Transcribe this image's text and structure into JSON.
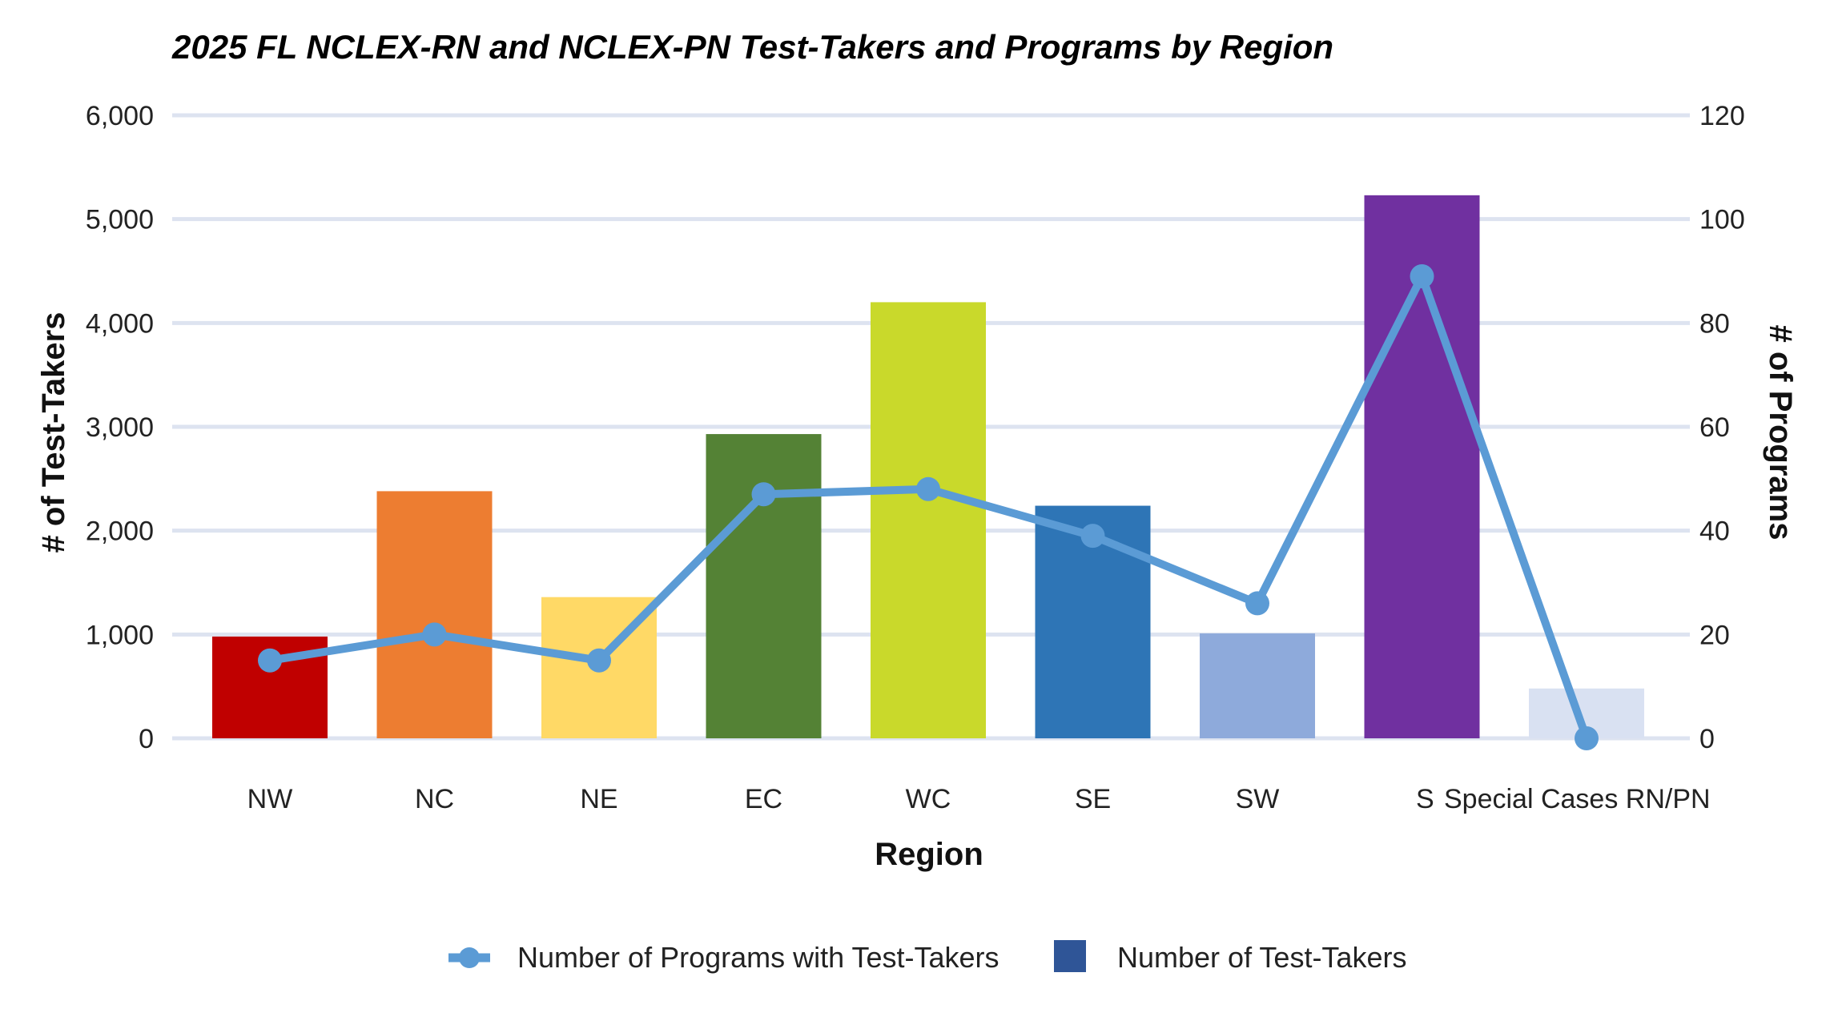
{
  "chart_data": {
    "type": "bar",
    "title": "2025 FL NCLEX-RN and NCLEX-PN Test-Takers and Programs by Region",
    "xlabel": "Region",
    "ylabel": "# of Test-Takers",
    "y2label": "# of Programs",
    "ylim": [
      0,
      6000
    ],
    "y2lim": [
      0,
      120
    ],
    "yticks": [
      "0",
      "1,000",
      "2,000",
      "3,000",
      "4,000",
      "5,000",
      "6,000"
    ],
    "y2ticks": [
      "0",
      "20",
      "40",
      "60",
      "80",
      "100",
      "120"
    ],
    "grid": true,
    "legend_position": "bottom",
    "categories": [
      "NW",
      "NC",
      "NE",
      "EC",
      "WC",
      "SE",
      "SW",
      "S",
      "Special Cases RN/PN"
    ],
    "series": [
      {
        "name": "Number of Test-Takers",
        "type": "bar",
        "axis": "left",
        "legend_color": "#2f5597",
        "values": [
          980,
          2380,
          1360,
          2930,
          4200,
          2240,
          1010,
          5230,
          480
        ],
        "colors": [
          "#c00000",
          "#ed7d31",
          "#ffd966",
          "#548235",
          "#c9d92b",
          "#2e75b6",
          "#8eaadb",
          "#7030a0",
          "#d9e1f2"
        ]
      },
      {
        "name": "Number of Programs with Test-Takers",
        "type": "line",
        "axis": "right",
        "color": "#5b9bd5",
        "values": [
          15,
          20,
          15,
          47,
          48,
          39,
          26,
          89,
          0
        ]
      }
    ]
  }
}
